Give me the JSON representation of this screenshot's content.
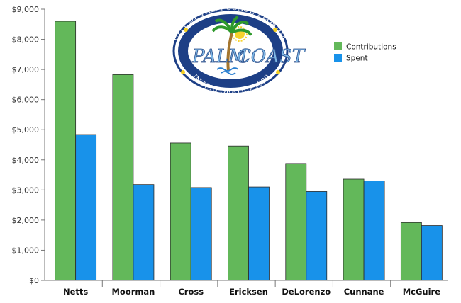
{
  "chart_data": {
    "type": "bar",
    "categories": [
      "Netts",
      "Moorman",
      "Cross",
      "Ericksen",
      "DeLorenzo",
      "Cunnane",
      "McGuire"
    ],
    "series": [
      {
        "name": "Contributions",
        "values": [
          8600,
          6830,
          4560,
          4460,
          3880,
          3360,
          1920
        ],
        "color": "#63b85a"
      },
      {
        "name": "Spent",
        "values": [
          4840,
          3180,
          3080,
          3100,
          2950,
          3300,
          1820
        ],
        "color": "#1892ea"
      }
    ],
    "ylim": [
      0,
      9000
    ],
    "yticks": [
      0,
      1000,
      2000,
      3000,
      4000,
      5000,
      6000,
      7000,
      8000,
      9000
    ],
    "ytick_labels": [
      "$0",
      "$1,000",
      "$2,000",
      "$3,000",
      "$4,000",
      "$5,000",
      "$6,000",
      "$7,000",
      "$8,000",
      "$9,000"
    ],
    "legend_position": "top-right",
    "grid": false
  },
  "logo": {
    "top_text": "CITY OF PALM COAST, FLORIDA",
    "name_left": "PALM",
    "name_right": "COAST",
    "bottom_text": "INCORPORATED 1999"
  }
}
